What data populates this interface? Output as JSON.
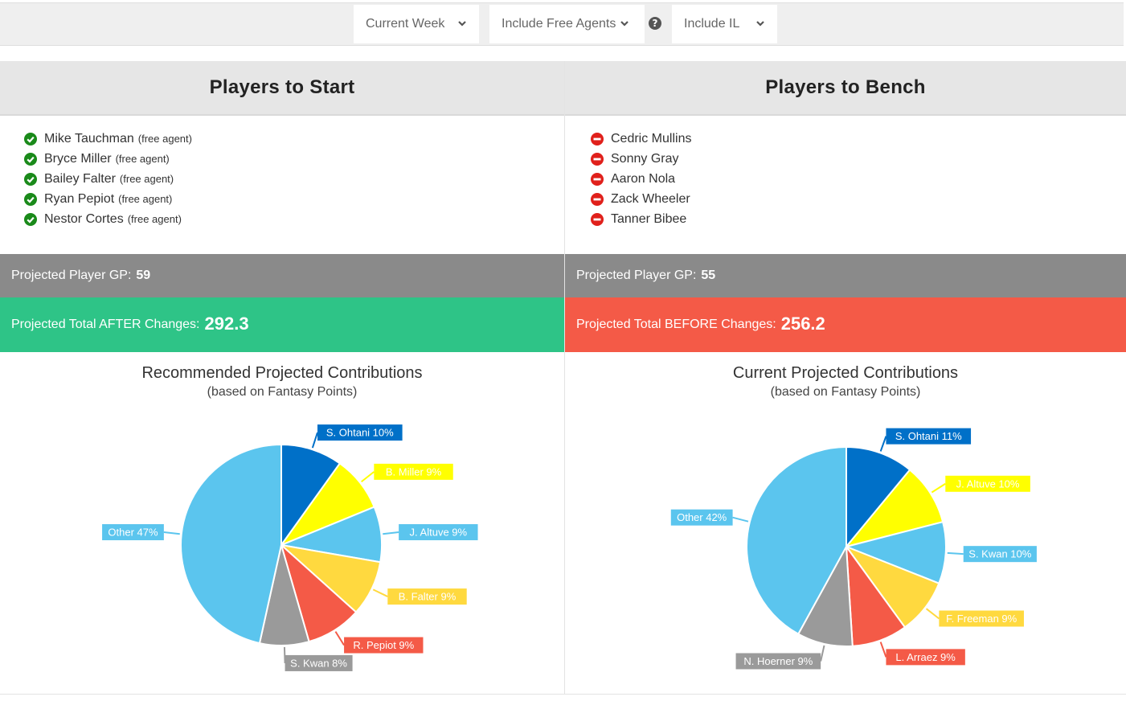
{
  "filters": {
    "week": "Current Week",
    "free_agents": "Include Free Agents",
    "help": "?",
    "il": "Include IL"
  },
  "start": {
    "title": "Players to Start",
    "players": [
      {
        "name": "Mike Tauchman",
        "tag": "(free agent)"
      },
      {
        "name": "Bryce Miller",
        "tag": "(free agent)"
      },
      {
        "name": "Bailey Falter",
        "tag": "(free agent)"
      },
      {
        "name": "Ryan Pepiot",
        "tag": "(free agent)"
      },
      {
        "name": "Nestor Cortes",
        "tag": "(free agent)"
      }
    ],
    "gp_label": "Projected Player GP:",
    "gp_value": "59",
    "total_label": "Projected Total AFTER Changes:",
    "total_value": "292.3",
    "chart_title": "Recommended Projected Contributions",
    "chart_subtitle": "(based on Fantasy Points)"
  },
  "bench": {
    "title": "Players to Bench",
    "players": [
      {
        "name": "Cedric Mullins"
      },
      {
        "name": "Sonny Gray"
      },
      {
        "name": "Aaron Nola"
      },
      {
        "name": "Zack Wheeler"
      },
      {
        "name": "Tanner Bibee"
      }
    ],
    "gp_label": "Projected Player GP:",
    "gp_value": "55",
    "total_label": "Projected Total BEFORE Changes:",
    "total_value": "256.2",
    "chart_title": "Current Projected Contributions",
    "chart_subtitle": "(based on Fantasy Points)"
  },
  "colors": {
    "start_icon": "#1a8a1a",
    "bench_icon": "#e0201b",
    "gp_bar": "#8a8a8a",
    "after_bar": "#2ec487",
    "before_bar": "#f45a47"
  },
  "chart_data": [
    {
      "type": "pie",
      "title": "Recommended Projected Contributions",
      "subtitle": "(based on Fantasy Points)",
      "slices": [
        {
          "label": "S. Ohtani",
          "value": 10,
          "color": "#0070c8"
        },
        {
          "label": "B. Miller",
          "value": 9,
          "color": "#ffff00"
        },
        {
          "label": "J. Altuve",
          "value": 9,
          "color": "#5bc5ee"
        },
        {
          "label": "B. Falter",
          "value": 9,
          "color": "#ffd93f"
        },
        {
          "label": "R. Pepiot",
          "value": 9,
          "color": "#f45a47"
        },
        {
          "label": "S. Kwan",
          "value": 8,
          "color": "#9a9a9a"
        },
        {
          "label": "Other",
          "value": 47,
          "color": "#5bc5ee"
        }
      ]
    },
    {
      "type": "pie",
      "title": "Current Projected Contributions",
      "subtitle": "(based on Fantasy Points)",
      "slices": [
        {
          "label": "S. Ohtani",
          "value": 11,
          "color": "#0070c8"
        },
        {
          "label": "J. Altuve",
          "value": 10,
          "color": "#ffff00"
        },
        {
          "label": "S. Kwan",
          "value": 10,
          "color": "#5bc5ee"
        },
        {
          "label": "F. Freeman",
          "value": 9,
          "color": "#ffd93f"
        },
        {
          "label": "L. Arraez",
          "value": 9,
          "color": "#f45a47"
        },
        {
          "label": "N. Hoerner",
          "value": 9,
          "color": "#9a9a9a"
        },
        {
          "label": "Other",
          "value": 42,
          "color": "#5bc5ee"
        }
      ]
    }
  ]
}
